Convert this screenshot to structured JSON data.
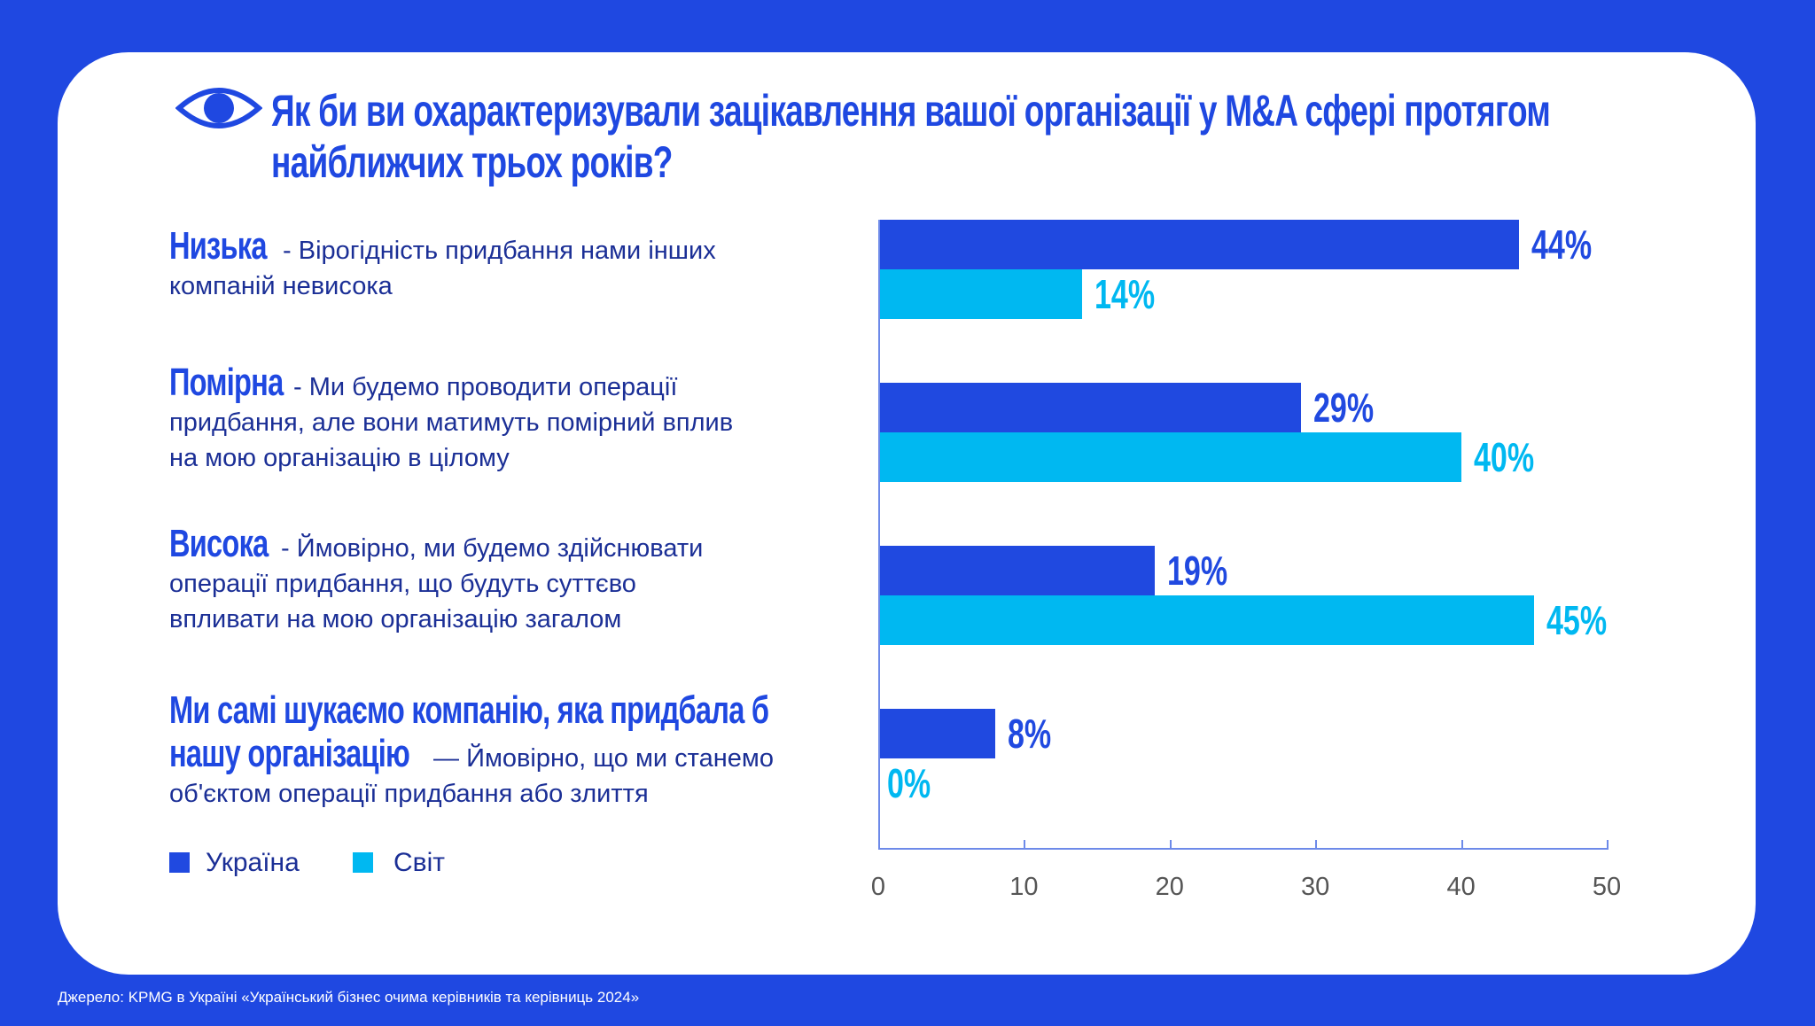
{
  "title": [
    "Як би ви охарактеризували зацікавлення вашої організації у M&A сфері протягом",
    "найближчих трьох років?"
  ],
  "icon": "eye-icon",
  "colors": {
    "ukraine": "#2049e0",
    "world": "#00b8f1",
    "background": "#1f48e1"
  },
  "categories": [
    {
      "head": "Низька",
      "desc_lines": [
        " - Вірогідність придбання нами інших",
        "компаній невисока"
      ]
    },
    {
      "head": "Помірна",
      "desc_lines": [
        " - Ми будемо проводити операції",
        "придбання, але вони матимуть помірний вплив",
        "на мою організацію в цілому"
      ]
    },
    {
      "head": "Висока",
      "desc_lines": " - Ймовірно, ми будемо здійснювати|операції придбання, що будуть суттєво|впливати на мою організацію загалом"
    },
    {
      "head_lines": [
        "Ми самі шукаємо компанію, яка придбала б",
        "нашу організацію"
      ],
      "desc_lines": [
        "  — Ймовірно, що ми станемо",
        "об'єктом операції придбання або злиття"
      ]
    }
  ],
  "legend": [
    "Україна",
    "Світ"
  ],
  "footer": "Джерело: KPMG в Україні «Український бізнес очима керівників та керівниць 2024»",
  "chart_data": {
    "type": "bar",
    "orientation": "horizontal",
    "categories": [
      "Низька",
      "Помірна",
      "Висока",
      "Ми самі шукаємо компанію, яка придбала б нашу організацію"
    ],
    "series": [
      {
        "name": "Україна",
        "values": [
          44,
          29,
          19,
          8
        ],
        "labels": [
          "44%",
          "29%",
          "19%",
          "8%"
        ]
      },
      {
        "name": "Світ",
        "values": [
          14,
          40,
          45,
          0
        ],
        "labels": [
          "14%",
          "40%",
          "45%",
          "0%"
        ]
      }
    ],
    "xlim": [
      0,
      50
    ],
    "xticks": [
      "0",
      "10",
      "20",
      "30",
      "40",
      "50"
    ],
    "legend_position": "bottom-left",
    "grid": false
  }
}
